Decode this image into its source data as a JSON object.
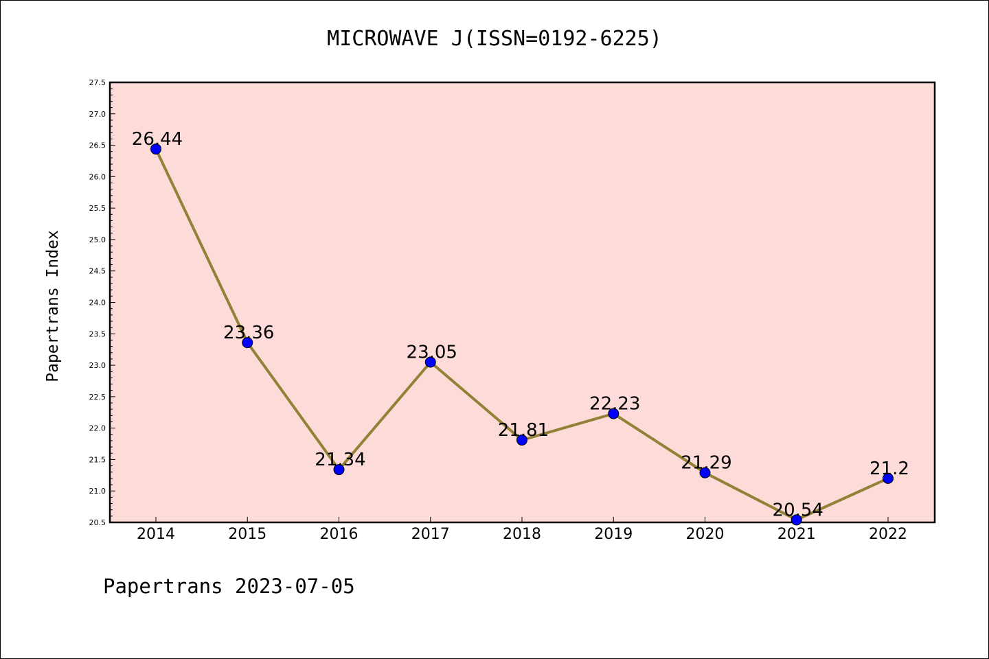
{
  "chart_data": {
    "type": "line",
    "title": "MICROWAVE J(ISSN=0192-6225)",
    "ylabel": "Papertrans Index",
    "xlabel": "",
    "footer": "Papertrans 2023-07-05",
    "categories": [
      "2014",
      "2015",
      "2016",
      "2017",
      "2018",
      "2019",
      "2020",
      "2021",
      "2022"
    ],
    "values": [
      26.44,
      23.36,
      21.34,
      23.05,
      21.81,
      22.23,
      21.29,
      20.54,
      21.2
    ],
    "data_labels": [
      "26.44",
      "23.36",
      "21.34",
      "23.05",
      "21.81",
      "22.23",
      "21.29",
      "20.54",
      "21.2"
    ],
    "ylim": [
      20.5,
      27.5
    ],
    "yticks": [
      "20.5",
      "21.0",
      "21.5",
      "22.0",
      "22.5",
      "23.0",
      "23.5",
      "24.0",
      "24.5",
      "25.0",
      "25.5",
      "26.0",
      "26.5",
      "27.0",
      "27.5"
    ],
    "grid": false,
    "legend": "none",
    "colors": {
      "plot_background": "#fddbd8",
      "line": "#938138",
      "marker": "#0000ff",
      "axis": "#000000"
    }
  }
}
